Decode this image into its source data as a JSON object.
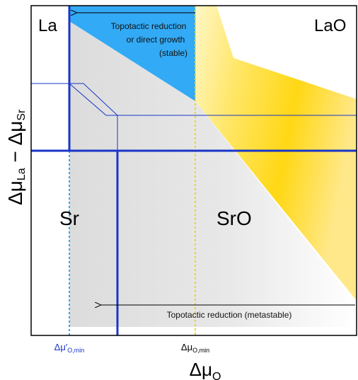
{
  "regions": {
    "la": "La",
    "lao": "LaO",
    "sr": "Sr",
    "sro": "SrO"
  },
  "annotations": {
    "top_line1": "Topotactic reduction",
    "top_line2": "or direct growth",
    "top_line3": "(stable)",
    "bottom": "Topotactic reduction (metastable)"
  },
  "axes": {
    "x_label_main": "Δμ",
    "x_label_sub": "O",
    "y_label_parts": [
      "Δμ",
      "La",
      " − Δμ",
      "Sr"
    ],
    "tick_prime_main": "Δμ′",
    "tick_prime_sub": "O,min",
    "tick_main": "Δμ",
    "tick_sub": "O,min"
  },
  "colors": {
    "blue_region": "#33aaf5",
    "yellow_region": "#ffd400",
    "gray_region": "#e6e6e6",
    "boundary_line": "#1a35c8",
    "dashed_cyan": "#2fa8f0",
    "dashed_yellow": "#f5d21c",
    "tick_blue_text": "#1a35c8"
  }
}
